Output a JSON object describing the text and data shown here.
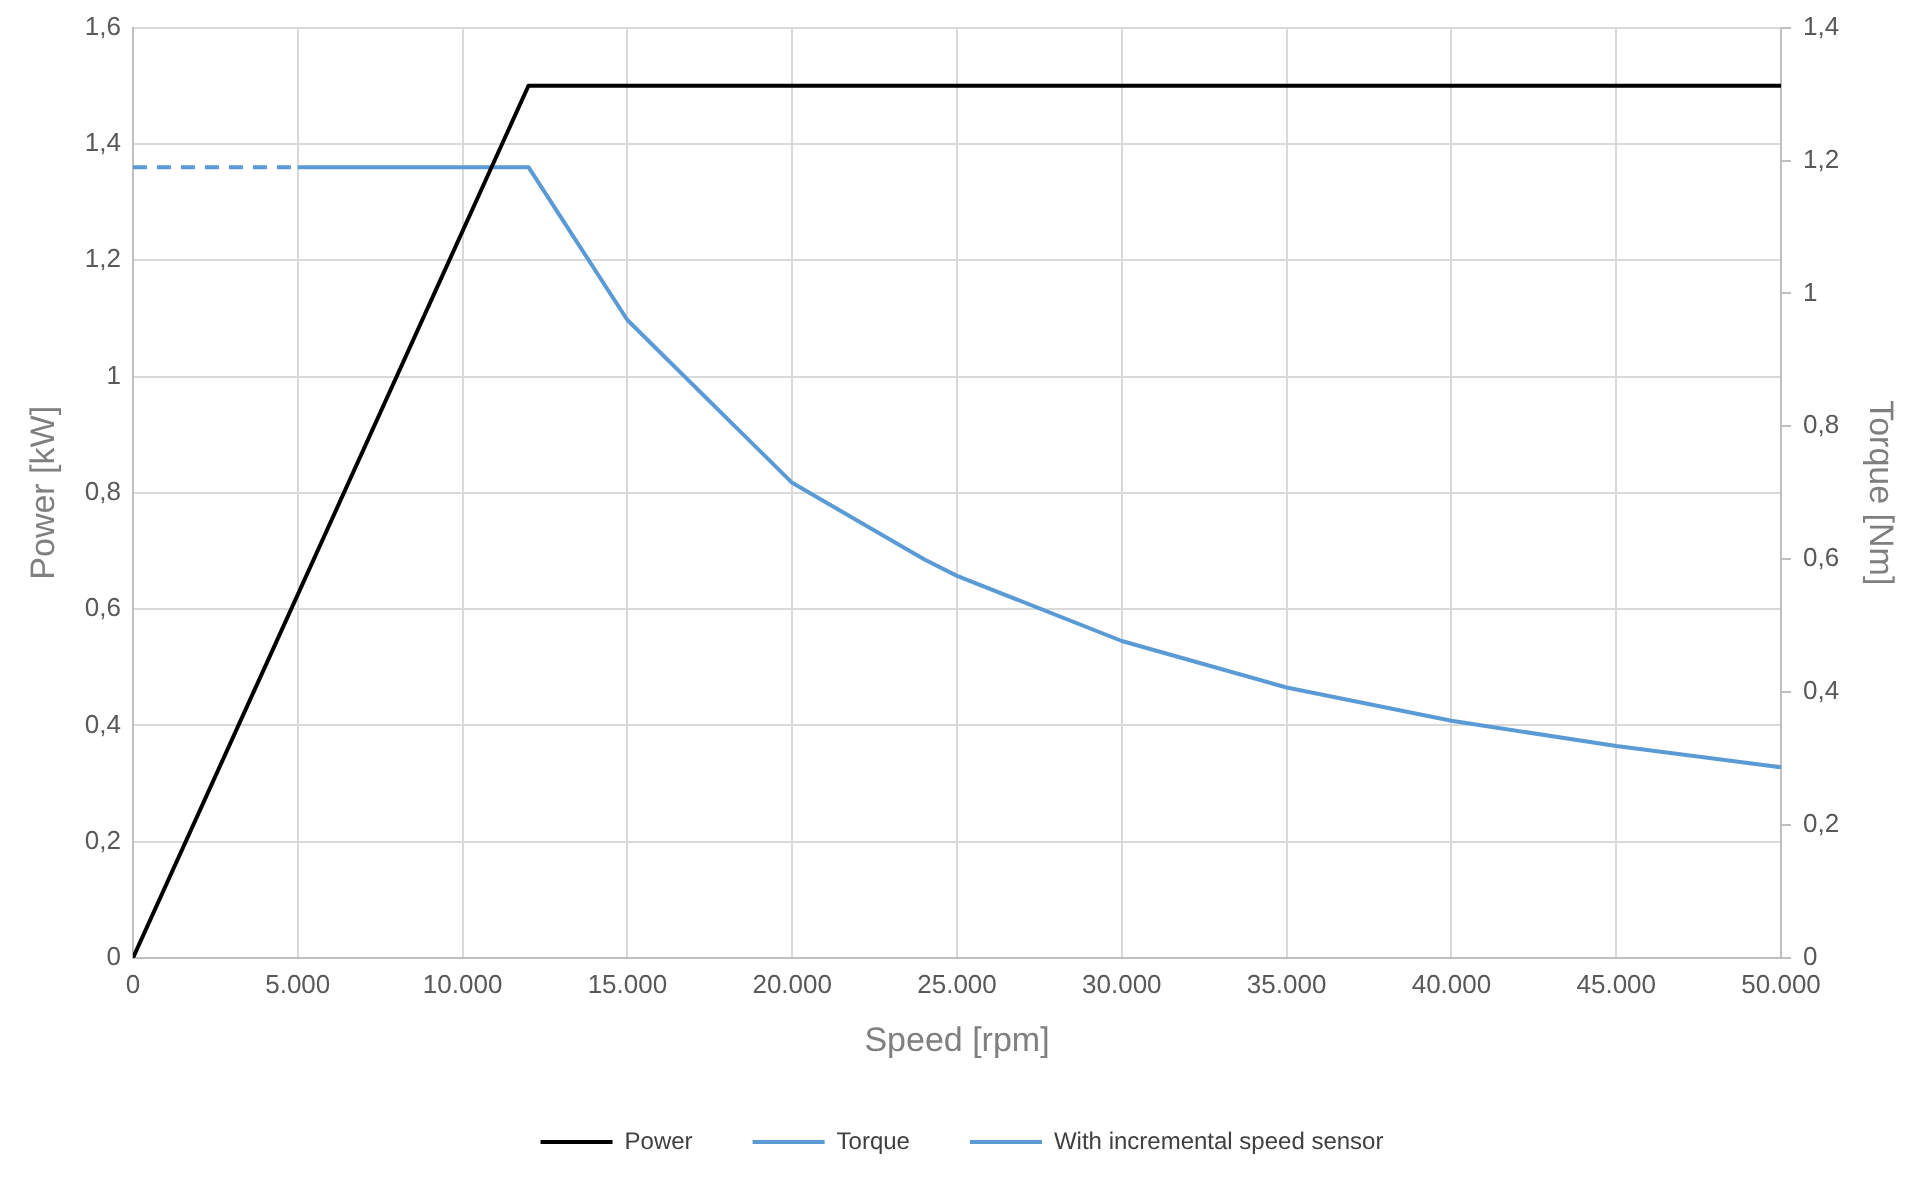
{
  "chart_data": {
    "type": "line",
    "xlabel": "Speed [rpm]",
    "ylabel": "Power [kW]",
    "y2label": "Torque [Nm]",
    "xlim": [
      0,
      50000
    ],
    "xticks": [
      0,
      {
        "value": 5000,
        "label": "5.000"
      },
      {
        "value": 10000,
        "label": "10.000"
      },
      {
        "value": 15000,
        "label": "15.000"
      },
      {
        "value": 20000,
        "label": "20.000"
      },
      {
        "value": 25000,
        "label": "25.000"
      },
      {
        "value": 30000,
        "label": "30.000"
      },
      {
        "value": 35000,
        "label": "35.000"
      },
      {
        "value": 40000,
        "label": "40.000"
      },
      {
        "value": 45000,
        "label": "45.000"
      },
      {
        "value": 50000,
        "label": "50.000"
      }
    ],
    "ylim": [
      0,
      1.6
    ],
    "yticks": [
      0,
      {
        "value": 0.2,
        "label": "0,2"
      },
      {
        "value": 0.4,
        "label": "0,4"
      },
      {
        "value": 0.6,
        "label": "0,6"
      },
      {
        "value": 0.8,
        "label": "0,8"
      },
      1,
      {
        "value": 1.2,
        "label": "1,2"
      },
      {
        "value": 1.4,
        "label": "1,4"
      },
      {
        "value": 1.6,
        "label": "1,6"
      }
    ],
    "y2lim": [
      0,
      1.4
    ],
    "y2ticks": [
      0,
      {
        "value": 0.2,
        "label": "0,2"
      },
      {
        "value": 0.4,
        "label": "0,4"
      },
      {
        "value": 0.6,
        "label": "0,6"
      },
      {
        "value": 0.8,
        "label": "0,8"
      },
      1,
      {
        "value": 1.2,
        "label": "1,2"
      },
      {
        "value": 1.4,
        "label": "1,4"
      }
    ],
    "grid": true,
    "legend": "bottom",
    "marker": "none",
    "series": [
      {
        "name": "Power",
        "color": "#000000",
        "x": [
          0,
          12000,
          50000
        ],
        "values": [
          0,
          1.5,
          1.5
        ]
      },
      {
        "name": "Torque",
        "color": "#5b9bd5",
        "axis": "y2",
        "x": [
          5000,
          12000,
          15000,
          20000,
          24000,
          25000,
          30000,
          35000,
          40000,
          45000,
          50000
        ],
        "values": [
          1.19,
          1.19,
          0.96,
          0.715,
          0.6,
          0.575,
          0.477,
          0.407,
          0.357,
          0.319,
          0.287
        ]
      },
      {
        "name": "With incremental speed sensor",
        "color": "#5b9bd5",
        "axis": "y2",
        "line_style": "dashed",
        "x": [
          0,
          5000
        ],
        "values": [
          1.19,
          1.19
        ]
      }
    ]
  }
}
